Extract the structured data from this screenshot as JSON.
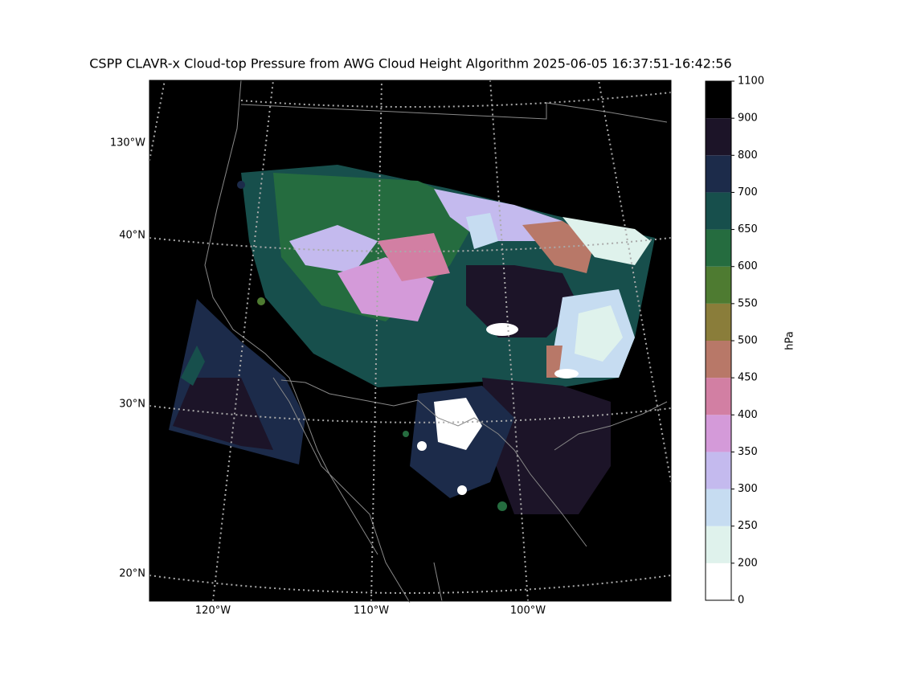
{
  "title": "CSPP CLAVR-x Cloud-top Pressure from AWG Cloud Height Algorithm 2025-06-05 16:37:51-16:42:56",
  "map": {
    "lat_labels": [
      "130°W",
      "40°N",
      "30°N",
      "20°N"
    ],
    "lon_labels": [
      "120°W",
      "110°W",
      "100°W"
    ]
  },
  "colorbar": {
    "label": "hPa",
    "ticks": [
      0,
      200,
      250,
      300,
      350,
      400,
      450,
      500,
      550,
      600,
      650,
      700,
      800,
      900,
      1100
    ],
    "colors": [
      "#ffffff",
      "#dff2ec",
      "#c6dcf1",
      "#c4baee",
      "#d49ad9",
      "#d27fa3",
      "#b87868",
      "#8a7d3a",
      "#4e7b31",
      "#256c3f",
      "#174f4c",
      "#1c2b4a",
      "#1c1428",
      "#000000"
    ]
  }
}
